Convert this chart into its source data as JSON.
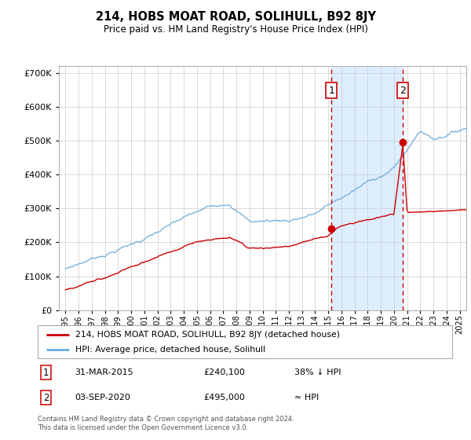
{
  "title": "214, HOBS MOAT ROAD, SOLIHULL, B92 8JY",
  "subtitle": "Price paid vs. HM Land Registry's House Price Index (HPI)",
  "legend_line1": "214, HOBS MOAT ROAD, SOLIHULL, B92 8JY (detached house)",
  "legend_line2": "HPI: Average price, detached house, Solihull",
  "event1_date": "31-MAR-2015",
  "event1_price": "£240,100",
  "event1_note": "38% ↓ HPI",
  "event2_date": "03-SEP-2020",
  "event2_price": "£495,000",
  "event2_note": "≈ HPI",
  "footer": "Contains HM Land Registry data © Crown copyright and database right 2024.\nThis data is licensed under the Open Government Licence v3.0.",
  "hpi_color": "#6aacdc",
  "price_color": "#cc0000",
  "highlight_color": "#ddeeff",
  "ylim": [
    0,
    720000
  ],
  "yticks": [
    0,
    100000,
    200000,
    300000,
    400000,
    500000,
    600000,
    700000
  ],
  "event1_x": 2015.25,
  "event2_x": 2020.67,
  "event1_y": 240100,
  "event2_y": 495000,
  "xmin": 1994.5,
  "xmax": 2025.5
}
